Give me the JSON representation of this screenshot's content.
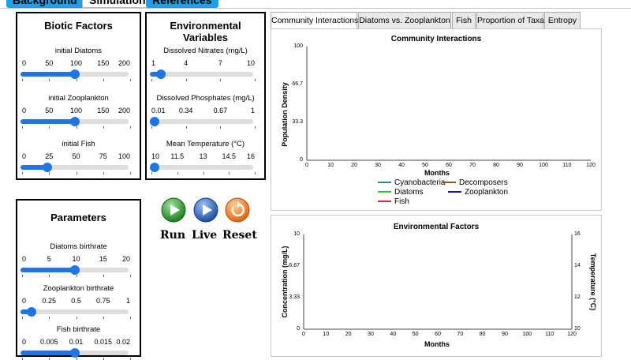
{
  "top_tabs": [
    {
      "label": "Background"
    },
    {
      "label": "Simulation"
    },
    {
      "label": "References"
    }
  ],
  "biotic": {
    "title": "Biotic Factors",
    "sliders": [
      {
        "label": "initial Diatoms",
        "ticks": [
          "0",
          "50",
          "100",
          "150",
          "200"
        ],
        "fraction": 0.5
      },
      {
        "label": "initial Zooplankton",
        "ticks": [
          "0",
          "50",
          "100",
          "150",
          "200"
        ],
        "fraction": 0.5
      },
      {
        "label": "initial Fish",
        "ticks": [
          "0",
          "25",
          "50",
          "75",
          "100"
        ],
        "fraction": 0.25
      }
    ]
  },
  "env": {
    "title": "Environmental Variables",
    "sliders": [
      {
        "label": "Dissolved Nitrates (mg/L)",
        "ticks": [
          "1",
          "4",
          "7",
          "10"
        ],
        "fraction": 0.11
      },
      {
        "label": "Dissolved Phosphates (mg/L)",
        "ticks": [
          "0.01",
          "0.34",
          "0.67",
          "1"
        ],
        "fraction": 0.04
      },
      {
        "label": "Mean Temperature (°C)",
        "ticks": [
          "10",
          "11.5",
          "13",
          "14.5",
          "16"
        ],
        "fraction": 0.0
      }
    ]
  },
  "params": {
    "title": "Parameters",
    "sliders": [
      {
        "label": "Diatoms birthrate",
        "ticks": [
          "0",
          "5",
          "10",
          "15",
          "20"
        ],
        "fraction": 0.5
      },
      {
        "label": "Zooplankton birthrate",
        "ticks": [
          "0",
          "0.25",
          "0.5",
          "0.75",
          "1"
        ],
        "fraction": 0.1
      },
      {
        "label": "Fish birthrate",
        "ticks": [
          "0",
          "0.005",
          "0.01",
          "0.015",
          "0.02"
        ],
        "fraction": 0.5
      }
    ]
  },
  "controls": {
    "run_label": "Run",
    "live_label": "Live",
    "reset_label": "Reset",
    "colors": {
      "run": "#2c9e2c",
      "live": "#1f5fbf",
      "reset": "#f07a17"
    }
  },
  "chart_tabs": [
    {
      "label": "Community Interactions"
    },
    {
      "label": "Diatoms vs. Zooplankton"
    },
    {
      "label": "Fish"
    },
    {
      "label": "Proportion of Taxa"
    },
    {
      "label": "Entropy"
    }
  ],
  "chart_data": [
    {
      "type": "line",
      "title": "Community Interactions",
      "xlabel": "Months",
      "ylabel": "Population Density",
      "xlim": [
        0,
        120
      ],
      "ylim": [
        0,
        100
      ],
      "x_ticks": [
        "0",
        "10",
        "20",
        "30",
        "40",
        "50",
        "60",
        "70",
        "80",
        "90",
        "100",
        "110",
        "120"
      ],
      "y_ticks": [
        "0",
        "33.3",
        "66.7",
        "100"
      ],
      "grid": false,
      "legend_position": "bottom",
      "series": [
        {
          "name": "Cyanobacteria",
          "color": "#169683",
          "values": []
        },
        {
          "name": "Decomposers",
          "color": "#8b5a14",
          "values": []
        },
        {
          "name": "Diatoms",
          "color": "#2ecc2e",
          "values": []
        },
        {
          "name": "Zooplankton",
          "color": "#1414b4",
          "values": []
        },
        {
          "name": "Fish",
          "color": "#ee2222",
          "values": []
        }
      ]
    },
    {
      "type": "line",
      "title": "Environmental Factors",
      "xlabel": "Months",
      "ylabel": "Concentration (mg/L)",
      "y2label": "Temperature (°C)",
      "xlim": [
        0,
        120
      ],
      "ylim": [
        0,
        10
      ],
      "y2lim": [
        10,
        16
      ],
      "x_ticks": [
        "0",
        "10",
        "20",
        "30",
        "40",
        "50",
        "60",
        "70",
        "80",
        "90",
        "100",
        "110",
        "120"
      ],
      "y_ticks": [
        "0",
        "3.33",
        "6.67",
        "10"
      ],
      "y2_ticks": [
        "10",
        "12",
        "14",
        "16"
      ],
      "grid": false,
      "series": []
    }
  ]
}
